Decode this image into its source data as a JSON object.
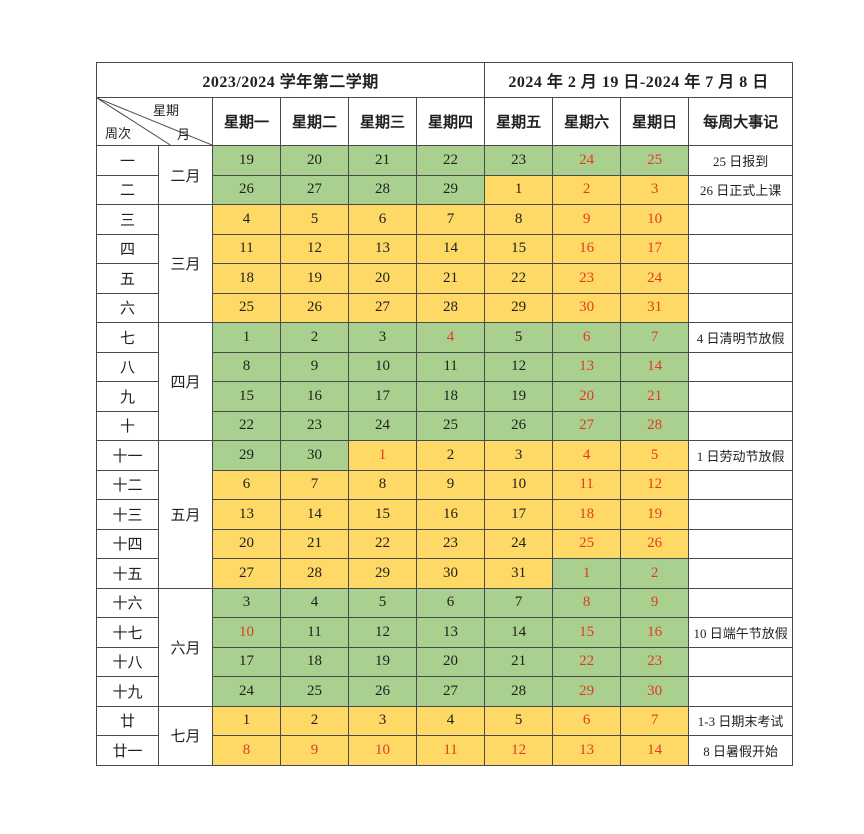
{
  "titles": {
    "left": "2023/2024 学年第二学期",
    "right": "2024 年 2 月 19 日-2024 年 7 月 8 日"
  },
  "corner": {
    "week_axis": "星期",
    "weekno_axis": "周次",
    "month_axis": "月"
  },
  "header": {
    "weekdays": [
      "星期一",
      "星期二",
      "星期三",
      "星期四",
      "星期五",
      "星期六",
      "星期日"
    ],
    "notes": "每周大事记"
  },
  "colors": {
    "green": "#a9d08e",
    "yellow": "#ffd966",
    "red": "#e23b22",
    "border": "#4a4a4a"
  },
  "months": [
    {
      "label": "二月",
      "span": 2
    },
    {
      "label": "三月",
      "span": 4
    },
    {
      "label": "四月",
      "span": 4
    },
    {
      "label": "五月",
      "span": 5
    },
    {
      "label": "六月",
      "span": 4
    },
    {
      "label": "七月",
      "span": 2
    }
  ],
  "weeks": [
    {
      "w": "一",
      "note": "25 日报到",
      "days": [
        {
          "d": 19,
          "bg": "green",
          "red": false
        },
        {
          "d": 20,
          "bg": "green",
          "red": false
        },
        {
          "d": 21,
          "bg": "green",
          "red": false
        },
        {
          "d": 22,
          "bg": "green",
          "red": false
        },
        {
          "d": 23,
          "bg": "green",
          "red": false
        },
        {
          "d": 24,
          "bg": "green",
          "red": true
        },
        {
          "d": 25,
          "bg": "green",
          "red": true
        }
      ]
    },
    {
      "w": "二",
      "note": "26 日正式上课",
      "days": [
        {
          "d": 26,
          "bg": "green",
          "red": false
        },
        {
          "d": 27,
          "bg": "green",
          "red": false
        },
        {
          "d": 28,
          "bg": "green",
          "red": false
        },
        {
          "d": 29,
          "bg": "green",
          "red": false
        },
        {
          "d": 1,
          "bg": "yellow",
          "red": false
        },
        {
          "d": 2,
          "bg": "yellow",
          "red": true
        },
        {
          "d": 3,
          "bg": "yellow",
          "red": true
        }
      ]
    },
    {
      "w": "三",
      "note": "",
      "days": [
        {
          "d": 4,
          "bg": "yellow",
          "red": false
        },
        {
          "d": 5,
          "bg": "yellow",
          "red": false
        },
        {
          "d": 6,
          "bg": "yellow",
          "red": false
        },
        {
          "d": 7,
          "bg": "yellow",
          "red": false
        },
        {
          "d": 8,
          "bg": "yellow",
          "red": false
        },
        {
          "d": 9,
          "bg": "yellow",
          "red": true
        },
        {
          "d": 10,
          "bg": "yellow",
          "red": true
        }
      ]
    },
    {
      "w": "四",
      "note": "",
      "days": [
        {
          "d": 11,
          "bg": "yellow",
          "red": false
        },
        {
          "d": 12,
          "bg": "yellow",
          "red": false
        },
        {
          "d": 13,
          "bg": "yellow",
          "red": false
        },
        {
          "d": 14,
          "bg": "yellow",
          "red": false
        },
        {
          "d": 15,
          "bg": "yellow",
          "red": false
        },
        {
          "d": 16,
          "bg": "yellow",
          "red": true
        },
        {
          "d": 17,
          "bg": "yellow",
          "red": true
        }
      ]
    },
    {
      "w": "五",
      "note": "",
      "days": [
        {
          "d": 18,
          "bg": "yellow",
          "red": false
        },
        {
          "d": 19,
          "bg": "yellow",
          "red": false
        },
        {
          "d": 20,
          "bg": "yellow",
          "red": false
        },
        {
          "d": 21,
          "bg": "yellow",
          "red": false
        },
        {
          "d": 22,
          "bg": "yellow",
          "red": false
        },
        {
          "d": 23,
          "bg": "yellow",
          "red": true
        },
        {
          "d": 24,
          "bg": "yellow",
          "red": true
        }
      ]
    },
    {
      "w": "六",
      "note": "",
      "days": [
        {
          "d": 25,
          "bg": "yellow",
          "red": false
        },
        {
          "d": 26,
          "bg": "yellow",
          "red": false
        },
        {
          "d": 27,
          "bg": "yellow",
          "red": false
        },
        {
          "d": 28,
          "bg": "yellow",
          "red": false
        },
        {
          "d": 29,
          "bg": "yellow",
          "red": false
        },
        {
          "d": 30,
          "bg": "yellow",
          "red": true
        },
        {
          "d": 31,
          "bg": "yellow",
          "red": true
        }
      ]
    },
    {
      "w": "七",
      "note": "4 日清明节放假",
      "days": [
        {
          "d": 1,
          "bg": "green",
          "red": false
        },
        {
          "d": 2,
          "bg": "green",
          "red": false
        },
        {
          "d": 3,
          "bg": "green",
          "red": false
        },
        {
          "d": 4,
          "bg": "green",
          "red": true
        },
        {
          "d": 5,
          "bg": "green",
          "red": false
        },
        {
          "d": 6,
          "bg": "green",
          "red": true
        },
        {
          "d": 7,
          "bg": "green",
          "red": true
        }
      ]
    },
    {
      "w": "八",
      "note": "",
      "days": [
        {
          "d": 8,
          "bg": "green",
          "red": false
        },
        {
          "d": 9,
          "bg": "green",
          "red": false
        },
        {
          "d": 10,
          "bg": "green",
          "red": false
        },
        {
          "d": 11,
          "bg": "green",
          "red": false
        },
        {
          "d": 12,
          "bg": "green",
          "red": false
        },
        {
          "d": 13,
          "bg": "green",
          "red": true
        },
        {
          "d": 14,
          "bg": "green",
          "red": true
        }
      ]
    },
    {
      "w": "九",
      "note": "",
      "days": [
        {
          "d": 15,
          "bg": "green",
          "red": false
        },
        {
          "d": 16,
          "bg": "green",
          "red": false
        },
        {
          "d": 17,
          "bg": "green",
          "red": false
        },
        {
          "d": 18,
          "bg": "green",
          "red": false
        },
        {
          "d": 19,
          "bg": "green",
          "red": false
        },
        {
          "d": 20,
          "bg": "green",
          "red": true
        },
        {
          "d": 21,
          "bg": "green",
          "red": true
        }
      ]
    },
    {
      "w": "十",
      "note": "",
      "days": [
        {
          "d": 22,
          "bg": "green",
          "red": false
        },
        {
          "d": 23,
          "bg": "green",
          "red": false
        },
        {
          "d": 24,
          "bg": "green",
          "red": false
        },
        {
          "d": 25,
          "bg": "green",
          "red": false
        },
        {
          "d": 26,
          "bg": "green",
          "red": false
        },
        {
          "d": 27,
          "bg": "green",
          "red": true
        },
        {
          "d": 28,
          "bg": "green",
          "red": true
        }
      ]
    },
    {
      "w": "十一",
      "note": "1 日劳动节放假",
      "days": [
        {
          "d": 29,
          "bg": "green",
          "red": false
        },
        {
          "d": 30,
          "bg": "green",
          "red": false
        },
        {
          "d": 1,
          "bg": "yellow",
          "red": true
        },
        {
          "d": 2,
          "bg": "yellow",
          "red": false
        },
        {
          "d": 3,
          "bg": "yellow",
          "red": false
        },
        {
          "d": 4,
          "bg": "yellow",
          "red": true
        },
        {
          "d": 5,
          "bg": "yellow",
          "red": true
        }
      ]
    },
    {
      "w": "十二",
      "note": "",
      "days": [
        {
          "d": 6,
          "bg": "yellow",
          "red": false
        },
        {
          "d": 7,
          "bg": "yellow",
          "red": false
        },
        {
          "d": 8,
          "bg": "yellow",
          "red": false
        },
        {
          "d": 9,
          "bg": "yellow",
          "red": false
        },
        {
          "d": 10,
          "bg": "yellow",
          "red": false
        },
        {
          "d": 11,
          "bg": "yellow",
          "red": true
        },
        {
          "d": 12,
          "bg": "yellow",
          "red": true
        }
      ]
    },
    {
      "w": "十三",
      "note": "",
      "days": [
        {
          "d": 13,
          "bg": "yellow",
          "red": false
        },
        {
          "d": 14,
          "bg": "yellow",
          "red": false
        },
        {
          "d": 15,
          "bg": "yellow",
          "red": false
        },
        {
          "d": 16,
          "bg": "yellow",
          "red": false
        },
        {
          "d": 17,
          "bg": "yellow",
          "red": false
        },
        {
          "d": 18,
          "bg": "yellow",
          "red": true
        },
        {
          "d": 19,
          "bg": "yellow",
          "red": true
        }
      ]
    },
    {
      "w": "十四",
      "note": "",
      "days": [
        {
          "d": 20,
          "bg": "yellow",
          "red": false
        },
        {
          "d": 21,
          "bg": "yellow",
          "red": false
        },
        {
          "d": 22,
          "bg": "yellow",
          "red": false
        },
        {
          "d": 23,
          "bg": "yellow",
          "red": false
        },
        {
          "d": 24,
          "bg": "yellow",
          "red": false
        },
        {
          "d": 25,
          "bg": "yellow",
          "red": true
        },
        {
          "d": 26,
          "bg": "yellow",
          "red": true
        }
      ]
    },
    {
      "w": "十五",
      "note": "",
      "days": [
        {
          "d": 27,
          "bg": "yellow",
          "red": false
        },
        {
          "d": 28,
          "bg": "yellow",
          "red": false
        },
        {
          "d": 29,
          "bg": "yellow",
          "red": false
        },
        {
          "d": 30,
          "bg": "yellow",
          "red": false
        },
        {
          "d": 31,
          "bg": "yellow",
          "red": false
        },
        {
          "d": 1,
          "bg": "green",
          "red": true
        },
        {
          "d": 2,
          "bg": "green",
          "red": true
        }
      ]
    },
    {
      "w": "十六",
      "note": "",
      "days": [
        {
          "d": 3,
          "bg": "green",
          "red": false
        },
        {
          "d": 4,
          "bg": "green",
          "red": false
        },
        {
          "d": 5,
          "bg": "green",
          "red": false
        },
        {
          "d": 6,
          "bg": "green",
          "red": false
        },
        {
          "d": 7,
          "bg": "green",
          "red": false
        },
        {
          "d": 8,
          "bg": "green",
          "red": true
        },
        {
          "d": 9,
          "bg": "green",
          "red": true
        }
      ]
    },
    {
      "w": "十七",
      "note": "10 日端午节放假",
      "days": [
        {
          "d": 10,
          "bg": "green",
          "red": true
        },
        {
          "d": 11,
          "bg": "green",
          "red": false
        },
        {
          "d": 12,
          "bg": "green",
          "red": false
        },
        {
          "d": 13,
          "bg": "green",
          "red": false
        },
        {
          "d": 14,
          "bg": "green",
          "red": false
        },
        {
          "d": 15,
          "bg": "green",
          "red": true
        },
        {
          "d": 16,
          "bg": "green",
          "red": true
        }
      ]
    },
    {
      "w": "十八",
      "note": "",
      "days": [
        {
          "d": 17,
          "bg": "green",
          "red": false
        },
        {
          "d": 18,
          "bg": "green",
          "red": false
        },
        {
          "d": 19,
          "bg": "green",
          "red": false
        },
        {
          "d": 20,
          "bg": "green",
          "red": false
        },
        {
          "d": 21,
          "bg": "green",
          "red": false
        },
        {
          "d": 22,
          "bg": "green",
          "red": true
        },
        {
          "d": 23,
          "bg": "green",
          "red": true
        }
      ]
    },
    {
      "w": "十九",
      "note": "",
      "days": [
        {
          "d": 24,
          "bg": "green",
          "red": false
        },
        {
          "d": 25,
          "bg": "green",
          "red": false
        },
        {
          "d": 26,
          "bg": "green",
          "red": false
        },
        {
          "d": 27,
          "bg": "green",
          "red": false
        },
        {
          "d": 28,
          "bg": "green",
          "red": false
        },
        {
          "d": 29,
          "bg": "green",
          "red": true
        },
        {
          "d": 30,
          "bg": "green",
          "red": true
        }
      ]
    },
    {
      "w": "廿",
      "note": "1-3 日期末考试",
      "days": [
        {
          "d": 1,
          "bg": "yellow",
          "red": false
        },
        {
          "d": 2,
          "bg": "yellow",
          "red": false
        },
        {
          "d": 3,
          "bg": "yellow",
          "red": false
        },
        {
          "d": 4,
          "bg": "yellow",
          "red": false
        },
        {
          "d": 5,
          "bg": "yellow",
          "red": false
        },
        {
          "d": 6,
          "bg": "yellow",
          "red": true
        },
        {
          "d": 7,
          "bg": "yellow",
          "red": true
        }
      ]
    },
    {
      "w": "廿一",
      "note": "8 日暑假开始",
      "days": [
        {
          "d": 8,
          "bg": "yellow",
          "red": true
        },
        {
          "d": 9,
          "bg": "yellow",
          "red": true
        },
        {
          "d": 10,
          "bg": "yellow",
          "red": true
        },
        {
          "d": 11,
          "bg": "yellow",
          "red": true
        },
        {
          "d": 12,
          "bg": "yellow",
          "red": true
        },
        {
          "d": 13,
          "bg": "yellow",
          "red": true
        },
        {
          "d": 14,
          "bg": "yellow",
          "red": true
        }
      ]
    }
  ]
}
